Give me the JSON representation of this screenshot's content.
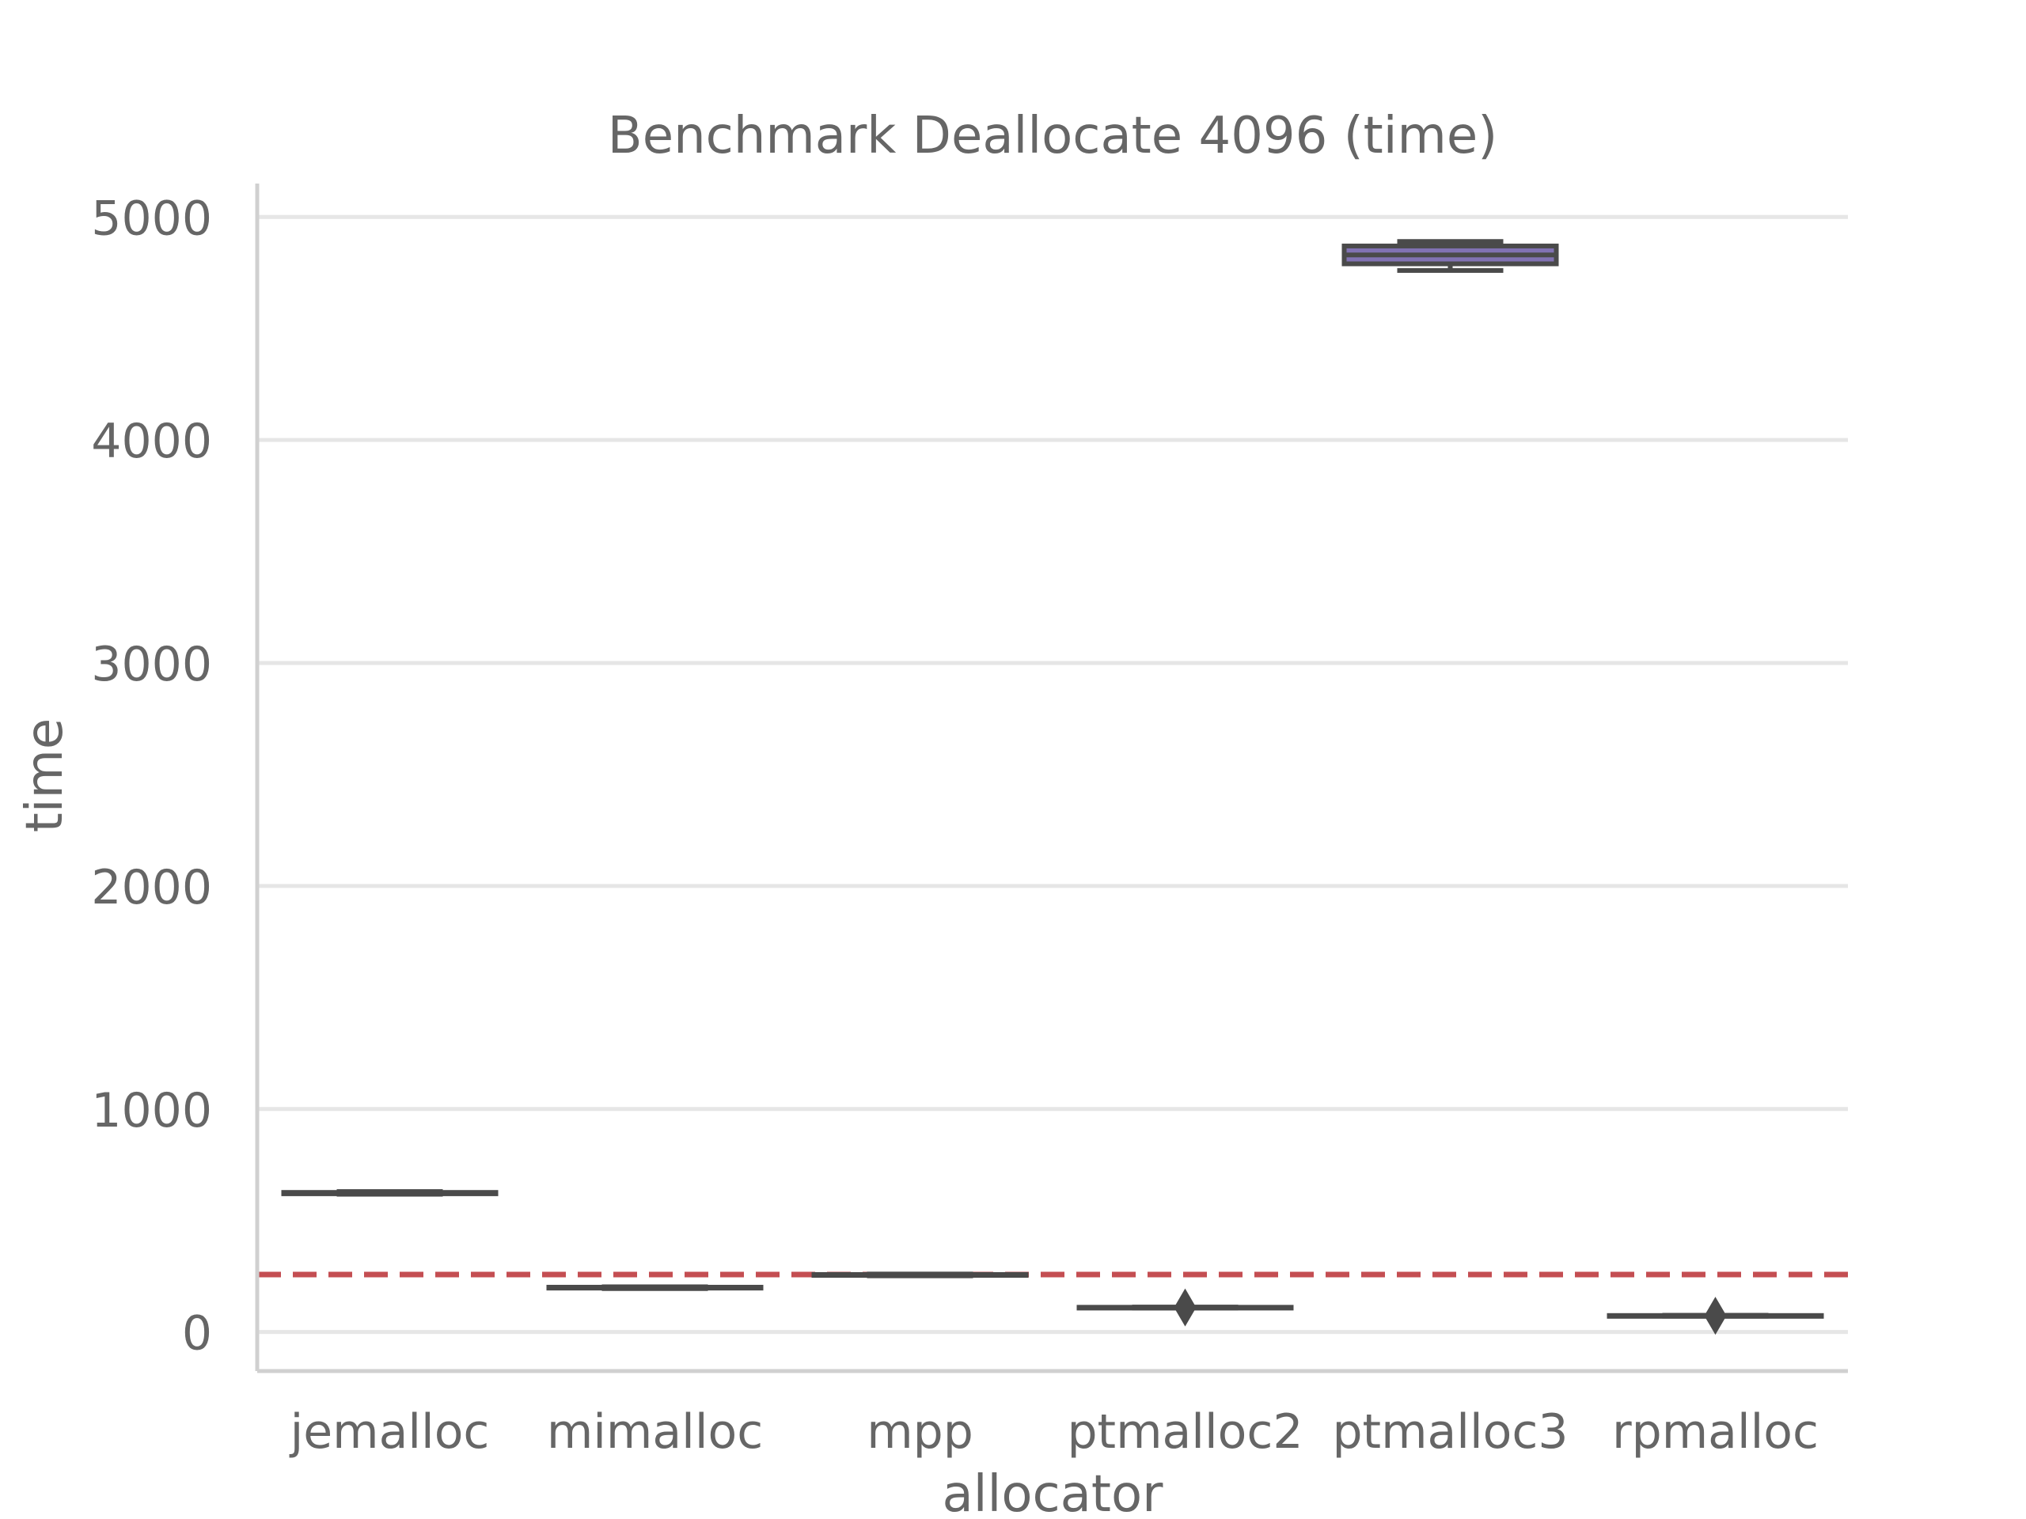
{
  "chart_data": {
    "type": "box",
    "title": "Benchmark Deallocate 4096 (time)",
    "xlabel": "allocator",
    "ylabel": "time",
    "ylim": [
      -175,
      5150
    ],
    "yticks": [
      0,
      1000,
      2000,
      3000,
      4000,
      5000
    ],
    "grid": "horizontal",
    "categories": [
      "jemalloc",
      "mimalloc",
      "mpp",
      "ptmalloc2",
      "ptmalloc3",
      "rpmalloc"
    ],
    "box_fill_color": "#8172b3",
    "box_edge_color": "#4a4a4a",
    "boxes": [
      {
        "category": "jemalloc",
        "whisker_low": 618,
        "q1": 620,
        "median": 622,
        "q3": 626,
        "whisker_high": 630,
        "outliers": []
      },
      {
        "category": "mimalloc",
        "whisker_low": 195,
        "q1": 197,
        "median": 199,
        "q3": 201,
        "whisker_high": 203,
        "outliers": []
      },
      {
        "category": "mpp",
        "whisker_low": 252,
        "q1": 254,
        "median": 256,
        "q3": 258,
        "whisker_high": 260,
        "outliers": []
      },
      {
        "category": "ptmalloc2",
        "whisker_low": 108,
        "q1": 109,
        "median": 110,
        "q3": 111,
        "whisker_high": 112,
        "outliers": [
          110
        ]
      },
      {
        "category": "ptmalloc3",
        "whisker_low": 4760,
        "q1": 4790,
        "median": 4830,
        "q3": 4870,
        "whisker_high": 4890,
        "outliers": []
      },
      {
        "category": "rpmalloc",
        "whisker_low": 71,
        "q1": 72,
        "median": 73,
        "q3": 74,
        "whisker_high": 75,
        "outliers": [
          73
        ]
      }
    ],
    "reference_line": {
      "value": 258,
      "style": "dashed",
      "color": "#c44e52"
    }
  }
}
